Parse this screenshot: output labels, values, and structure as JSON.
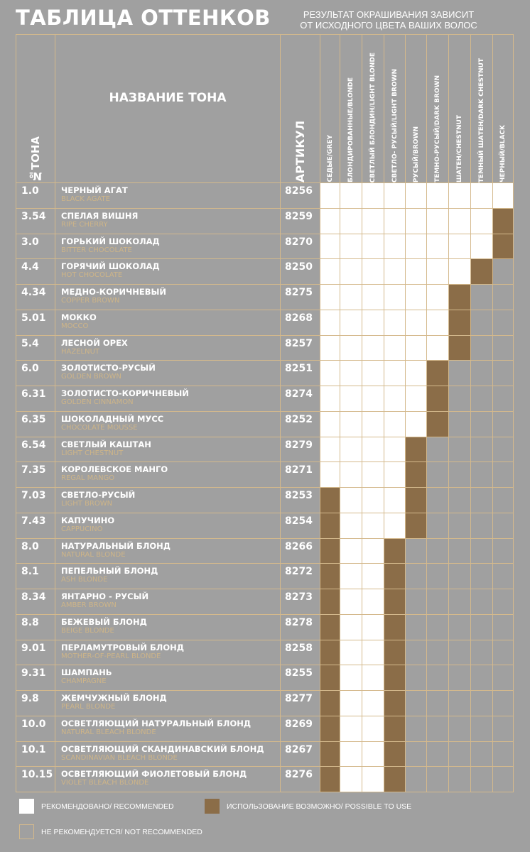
{
  "title": "ТАБЛИЦА ОТТЕНКОВ",
  "subtitle_line1": "РЕЗУЛЬТАТ ОКРАШИВАНИЯ ЗАВИСИТ",
  "subtitle_line2": "ОТ ИСХОДНОГО ЦВЕТА ВАШИХ ВОЛОС",
  "headers": {
    "tone_no": "№ТОНА",
    "name": "НАЗВАНИЕ ТОНА",
    "article": "АРТИКУЛ"
  },
  "hair_columns": [
    "СЕДЫЕ/GREY",
    "БЛОНДИРОВАННЫЕ/BLONDE",
    "СВЕТЛЫЙ БЛОНДИН/LIGHT BLONDE",
    "СВЕТЛО- РУСЫЙ/LIGHT BROWN",
    "РУСЫЙ/BROWN",
    "ТЕМНО-РУСЫЙ/DARK BROWN",
    "ШАТЕН/CHESTNUT",
    "ТЕМНЫЙ ШАТЕН/DARK CHESTNUT",
    "ЧЕРНЫЙ/BLACK"
  ],
  "colors": {
    "recommended": "#ffffff",
    "possible": "#8b6d48",
    "not_recommended": "#a0a0a0",
    "border": "#d4b98c"
  },
  "rows": [
    {
      "no": "1.0",
      "ru": "ЧЕРНЫЙ АГАТ",
      "en": "BLACK AGATE",
      "art": "8256",
      "cells": "RRRRRRRRR"
    },
    {
      "no": "3.54",
      "ru": "СПЕЛАЯ ВИШНЯ",
      "en": "RIPE CHERRY",
      "art": "8259",
      "cells": "RRRRRRRRP"
    },
    {
      "no": "3.0",
      "ru": "ГОРЬКИЙ ШОКОЛАД",
      "en": "BITTER CHOCOLATE",
      "art": "8270",
      "cells": "RRRRRRRRP"
    },
    {
      "no": "4.4",
      "ru": "ГОРЯЧИЙ ШОКОЛАД",
      "en": "HOT CHOCOLATE",
      "art": "8250",
      "cells": "RRRRRRRPN"
    },
    {
      "no": "4.34",
      "ru": "МЕДНО-КОРИЧНЕВЫЙ",
      "en": "COPPER BROWN",
      "art": "8275",
      "cells": "RRRRRRPNN"
    },
    {
      "no": "5.01",
      "ru": "МОККО",
      "en": "MOCCO",
      "art": "8268",
      "cells": "RRRRRRPNN"
    },
    {
      "no": "5.4",
      "ru": "ЛЕСНОЙ ОРЕХ",
      "en": "HAZELNUT",
      "art": "8257",
      "cells": "RRRRRRPNN"
    },
    {
      "no": "6.0",
      "ru": "ЗОЛОТИСТО-РУСЫЙ",
      "en": "GOLDEN BROWN",
      "art": "8251",
      "cells": "RRRRRPNNN"
    },
    {
      "no": "6.31",
      "ru": "ЗОЛОТИСТО-КОРИЧНЕВЫЙ",
      "en": "GOLDEN CINNAMON",
      "art": "8274",
      "cells": "RRRRRPNNN"
    },
    {
      "no": "6.35",
      "ru": "ШОКОЛАДНЫЙ МУСС",
      "en": "CHOCOLATE MOUSSE",
      "art": "8252",
      "cells": "RRRRRPNNN"
    },
    {
      "no": "6.54",
      "ru": "СВЕТЛЫЙ КАШТАН",
      "en": "LIGHT CHESTNUT",
      "art": "8279",
      "cells": "RRRRPNNNN"
    },
    {
      "no": "7.35",
      "ru": "КОРОЛЕВСКОЕ МАНГО",
      "en": "REGAL MANGO",
      "art": "8271",
      "cells": "RRRRPNNNN"
    },
    {
      "no": "7.03",
      "ru": "СВЕТЛО-РУСЫЙ",
      "en": "LIGHT BROWN",
      "art": "8253",
      "cells": "PRRRPNNNN"
    },
    {
      "no": "7.43",
      "ru": "КАПУЧИНО",
      "en": "CAPPUCINO",
      "art": "8254",
      "cells": "PRRRPNNNN"
    },
    {
      "no": "8.0",
      "ru": "НАТУРАЛЬНЫЙ БЛОНД",
      "en": "NATURAL BLONDE",
      "art": "8266",
      "cells": "PRRPNNNNN"
    },
    {
      "no": "8.1",
      "ru": "ПЕПЕЛЬНЫЙ БЛОНД",
      "en": "ASH BLONDE",
      "art": "8272",
      "cells": "PRRPNNNNN"
    },
    {
      "no": "8.34",
      "ru": "ЯНТАРНО - РУСЫЙ",
      "en": "AMBER BROWN",
      "art": "8273",
      "cells": "PRRPNNNNN"
    },
    {
      "no": "8.8",
      "ru": "БЕЖЕВЫЙ БЛОНД",
      "en": "BEIGE BLONDE",
      "art": "8278",
      "cells": "PRRPNNNNN"
    },
    {
      "no": "9.01",
      "ru": "ПЕРЛАМУТРОВЫЙ БЛОНД",
      "en": "MOTHER-OF-PEARL BLONDE",
      "art": "8258",
      "cells": "PRRPNNNNN"
    },
    {
      "no": "9.31",
      "ru": "ШАМПАНЬ",
      "en": "CHAMPAGNE",
      "art": "8255",
      "cells": "PRRPNNNNN"
    },
    {
      "no": "9.8",
      "ru": "ЖЕМЧУЖНЫЙ БЛОНД",
      "en": "PEARL BLONDE",
      "art": "8277",
      "cells": "PRRPNNNNN"
    },
    {
      "no": "10.0",
      "ru": "ОСВЕТЛЯЮЩИЙ  НАТУРАЛЬНЫЙ БЛОНД",
      "en": "NATURAL BLEACH BLONDE",
      "art": "8269",
      "cells": "PRRPNNNNN"
    },
    {
      "no": "10.1",
      "ru": "ОСВЕТЛЯЮЩИЙ СКАНДИНАВСКИЙ БЛОНД",
      "en": "SCANDINAVIAN BLEACH BLONDE",
      "art": "8267",
      "cells": "PRRPNNNNN"
    },
    {
      "no": "10.15",
      "ru": "ОСВЕТЛЯЮЩИЙ ФИОЛЕТОВЫЙ БЛОНД",
      "en": "VIOLET BLEACH BLONDE",
      "art": "8276",
      "cells": "PRRPNNNNN"
    }
  ],
  "legend": {
    "recommended": "РЕКОМЕНДОВАНО/ RECOMMENDED",
    "possible": "ИСПОЛЬЗОВАНИЕ ВОЗМОЖНО/  POSSIBLE TO USE",
    "not_recommended": "НЕ РЕКОМЕНДУЕТСЯ/ NOT RECOMMENDED"
  }
}
